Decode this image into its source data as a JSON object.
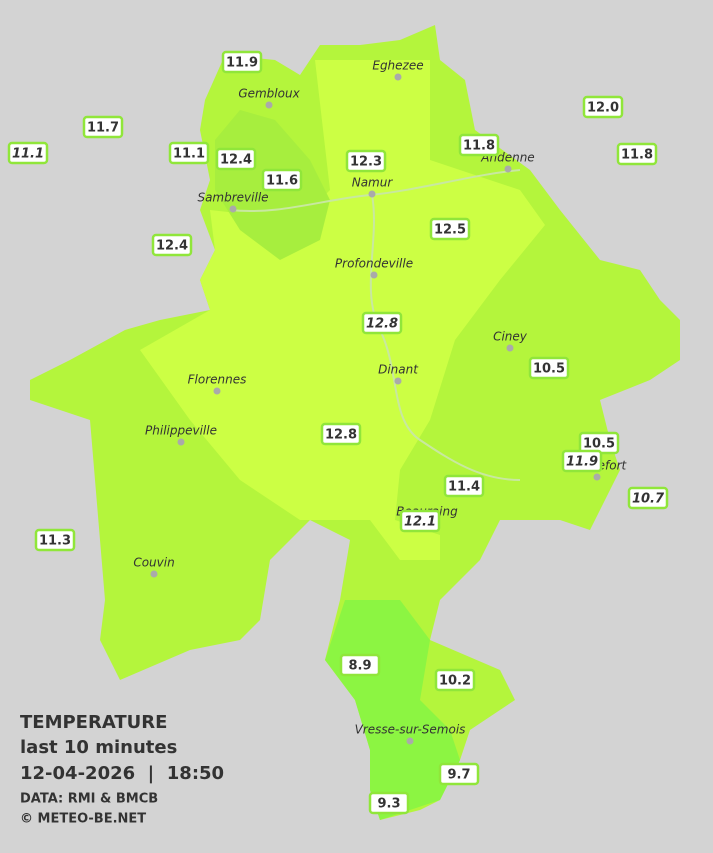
{
  "title": "TEMPERATURE",
  "subtitle": "last 10 minutes",
  "datetime": "12-04-2026  |  18:50",
  "source": "DATA: RMI & BMCB",
  "copyright": "© METEO-BE.NET",
  "towns": [
    "Eghezee",
    "Gembloux",
    "Andenne",
    "Namur",
    "Sambreville",
    "Profondeville",
    "Ciney",
    "Dinant",
    "Florennes",
    "Philippeville",
    "Rochefort",
    "Beauraing",
    "Couvin",
    "Vresse-sur-Semois"
  ],
  "stations": [
    "11.9",
    "11.7",
    "11.1",
    "11.1",
    "12.4",
    "11.6",
    "12.3",
    "11.8",
    "12.0",
    "11.8",
    "12.4",
    "12.5",
    "12.8",
    "10.5",
    "12.8",
    "10.5",
    "11.9",
    "11.4",
    "10.7",
    "12.1",
    "11.3",
    "8.9",
    "10.2",
    "9.7",
    "9.3"
  ]
}
